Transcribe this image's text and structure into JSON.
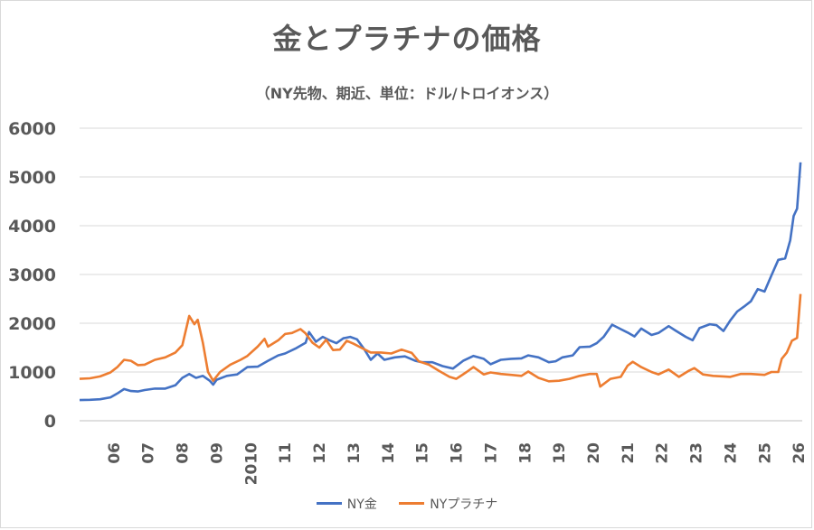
{
  "chart_data": {
    "type": "line",
    "title": "金とプラチナの価格",
    "subtitle": "（NY先物、期近、単位：ドル/トロイオンス）",
    "ylim": [
      0,
      6000
    ],
    "yticks": [
      "0",
      "1000",
      "2000",
      "3000",
      "4000",
      "5000",
      "6000"
    ],
    "xlim": [
      2005.0,
      2026.1
    ],
    "xticks": [
      {
        "label": "06",
        "x": 2006
      },
      {
        "label": "07",
        "x": 2007
      },
      {
        "label": "08",
        "x": 2008
      },
      {
        "label": "09",
        "x": 2009
      },
      {
        "label": "2010",
        "x": 2010
      },
      {
        "label": "11",
        "x": 2011
      },
      {
        "label": "12",
        "x": 2012
      },
      {
        "label": "13",
        "x": 2013
      },
      {
        "label": "14",
        "x": 2014
      },
      {
        "label": "15",
        "x": 2015
      },
      {
        "label": "16",
        "x": 2016
      },
      {
        "label": "17",
        "x": 2017
      },
      {
        "label": "18",
        "x": 2018
      },
      {
        "label": "19",
        "x": 2019
      },
      {
        "label": "20",
        "x": 2020
      },
      {
        "label": "21",
        "x": 2021
      },
      {
        "label": "22",
        "x": 2022
      },
      {
        "label": "23",
        "x": 2023
      },
      {
        "label": "24",
        "x": 2024
      },
      {
        "label": "25",
        "x": 2025
      },
      {
        "label": "26",
        "x": 2026
      }
    ],
    "grid": true,
    "legend_position": "bottom",
    "series": [
      {
        "name": "NY金",
        "color": "#4472c4",
        "points": [
          [
            2005.0,
            425
          ],
          [
            2005.3,
            430
          ],
          [
            2005.6,
            440
          ],
          [
            2005.9,
            480
          ],
          [
            2006.1,
            560
          ],
          [
            2006.3,
            650
          ],
          [
            2006.5,
            610
          ],
          [
            2006.7,
            600
          ],
          [
            2006.9,
            630
          ],
          [
            2007.2,
            660
          ],
          [
            2007.5,
            660
          ],
          [
            2007.8,
            730
          ],
          [
            2008.0,
            880
          ],
          [
            2008.2,
            960
          ],
          [
            2008.4,
            880
          ],
          [
            2008.6,
            920
          ],
          [
            2008.8,
            820
          ],
          [
            2008.9,
            740
          ],
          [
            2009.0,
            840
          ],
          [
            2009.3,
            920
          ],
          [
            2009.6,
            950
          ],
          [
            2009.9,
            1100
          ],
          [
            2010.2,
            1110
          ],
          [
            2010.5,
            1230
          ],
          [
            2010.8,
            1340
          ],
          [
            2011.0,
            1380
          ],
          [
            2011.3,
            1480
          ],
          [
            2011.6,
            1600
          ],
          [
            2011.7,
            1820
          ],
          [
            2011.9,
            1620
          ],
          [
            2012.1,
            1720
          ],
          [
            2012.3,
            1650
          ],
          [
            2012.5,
            1590
          ],
          [
            2012.7,
            1690
          ],
          [
            2012.9,
            1720
          ],
          [
            2013.1,
            1670
          ],
          [
            2013.3,
            1480
          ],
          [
            2013.5,
            1250
          ],
          [
            2013.7,
            1380
          ],
          [
            2013.9,
            1250
          ],
          [
            2014.2,
            1300
          ],
          [
            2014.5,
            1320
          ],
          [
            2014.8,
            1230
          ],
          [
            2015.0,
            1200
          ],
          [
            2015.3,
            1200
          ],
          [
            2015.6,
            1120
          ],
          [
            2015.9,
            1070
          ],
          [
            2016.2,
            1230
          ],
          [
            2016.5,
            1330
          ],
          [
            2016.8,
            1270
          ],
          [
            2017.0,
            1160
          ],
          [
            2017.3,
            1250
          ],
          [
            2017.6,
            1270
          ],
          [
            2017.9,
            1280
          ],
          [
            2018.1,
            1340
          ],
          [
            2018.4,
            1300
          ],
          [
            2018.7,
            1200
          ],
          [
            2018.9,
            1220
          ],
          [
            2019.1,
            1300
          ],
          [
            2019.4,
            1340
          ],
          [
            2019.6,
            1510
          ],
          [
            2019.9,
            1520
          ],
          [
            2020.1,
            1590
          ],
          [
            2020.3,
            1720
          ],
          [
            2020.55,
            1970
          ],
          [
            2020.8,
            1880
          ],
          [
            2021.0,
            1810
          ],
          [
            2021.2,
            1730
          ],
          [
            2021.4,
            1890
          ],
          [
            2021.7,
            1760
          ],
          [
            2021.9,
            1800
          ],
          [
            2022.2,
            1940
          ],
          [
            2022.4,
            1850
          ],
          [
            2022.7,
            1720
          ],
          [
            2022.9,
            1650
          ],
          [
            2023.1,
            1900
          ],
          [
            2023.4,
            1980
          ],
          [
            2023.6,
            1960
          ],
          [
            2023.8,
            1840
          ],
          [
            2024.0,
            2060
          ],
          [
            2024.2,
            2240
          ],
          [
            2024.4,
            2340
          ],
          [
            2024.6,
            2450
          ],
          [
            2024.8,
            2700
          ],
          [
            2025.0,
            2650
          ],
          [
            2025.2,
            2980
          ],
          [
            2025.4,
            3300
          ],
          [
            2025.6,
            3330
          ],
          [
            2025.75,
            3700
          ],
          [
            2025.85,
            4200
          ],
          [
            2025.95,
            4350
          ],
          [
            2026.05,
            5300
          ]
        ]
      },
      {
        "name": "NYプラチナ",
        "color": "#ed7d31",
        "points": [
          [
            2005.0,
            860
          ],
          [
            2005.3,
            870
          ],
          [
            2005.6,
            910
          ],
          [
            2005.9,
            990
          ],
          [
            2006.1,
            1100
          ],
          [
            2006.3,
            1250
          ],
          [
            2006.5,
            1230
          ],
          [
            2006.7,
            1140
          ],
          [
            2006.9,
            1150
          ],
          [
            2007.2,
            1250
          ],
          [
            2007.5,
            1300
          ],
          [
            2007.8,
            1400
          ],
          [
            2008.0,
            1550
          ],
          [
            2008.2,
            2150
          ],
          [
            2008.35,
            1980
          ],
          [
            2008.45,
            2070
          ],
          [
            2008.6,
            1600
          ],
          [
            2008.75,
            1000
          ],
          [
            2008.9,
            820
          ],
          [
            2009.1,
            1000
          ],
          [
            2009.4,
            1150
          ],
          [
            2009.7,
            1250
          ],
          [
            2009.9,
            1330
          ],
          [
            2010.2,
            1520
          ],
          [
            2010.4,
            1680
          ],
          [
            2010.5,
            1520
          ],
          [
            2010.8,
            1650
          ],
          [
            2011.0,
            1780
          ],
          [
            2011.2,
            1800
          ],
          [
            2011.45,
            1880
          ],
          [
            2011.6,
            1790
          ],
          [
            2011.8,
            1600
          ],
          [
            2012.0,
            1500
          ],
          [
            2012.2,
            1660
          ],
          [
            2012.4,
            1450
          ],
          [
            2012.6,
            1460
          ],
          [
            2012.8,
            1640
          ],
          [
            2013.0,
            1580
          ],
          [
            2013.3,
            1470
          ],
          [
            2013.5,
            1400
          ],
          [
            2013.8,
            1400
          ],
          [
            2014.1,
            1380
          ],
          [
            2014.4,
            1460
          ],
          [
            2014.7,
            1390
          ],
          [
            2014.9,
            1220
          ],
          [
            2015.2,
            1150
          ],
          [
            2015.5,
            1020
          ],
          [
            2015.8,
            900
          ],
          [
            2016.0,
            860
          ],
          [
            2016.3,
            1000
          ],
          [
            2016.5,
            1100
          ],
          [
            2016.8,
            950
          ],
          [
            2017.0,
            990
          ],
          [
            2017.3,
            960
          ],
          [
            2017.6,
            940
          ],
          [
            2017.9,
            920
          ],
          [
            2018.1,
            1010
          ],
          [
            2018.4,
            880
          ],
          [
            2018.7,
            810
          ],
          [
            2019.0,
            820
          ],
          [
            2019.3,
            860
          ],
          [
            2019.6,
            920
          ],
          [
            2019.9,
            960
          ],
          [
            2020.1,
            960
          ],
          [
            2020.2,
            700
          ],
          [
            2020.5,
            860
          ],
          [
            2020.8,
            900
          ],
          [
            2021.0,
            1130
          ],
          [
            2021.15,
            1210
          ],
          [
            2021.4,
            1100
          ],
          [
            2021.7,
            1000
          ],
          [
            2021.9,
            950
          ],
          [
            2022.2,
            1050
          ],
          [
            2022.5,
            900
          ],
          [
            2022.8,
            1030
          ],
          [
            2022.95,
            1080
          ],
          [
            2023.2,
            950
          ],
          [
            2023.5,
            920
          ],
          [
            2023.8,
            910
          ],
          [
            2024.0,
            900
          ],
          [
            2024.3,
            960
          ],
          [
            2024.6,
            960
          ],
          [
            2024.8,
            950
          ],
          [
            2025.0,
            940
          ],
          [
            2025.2,
            1000
          ],
          [
            2025.4,
            1000
          ],
          [
            2025.5,
            1270
          ],
          [
            2025.65,
            1400
          ],
          [
            2025.8,
            1640
          ],
          [
            2025.95,
            1700
          ],
          [
            2026.05,
            2600
          ]
        ]
      }
    ]
  }
}
